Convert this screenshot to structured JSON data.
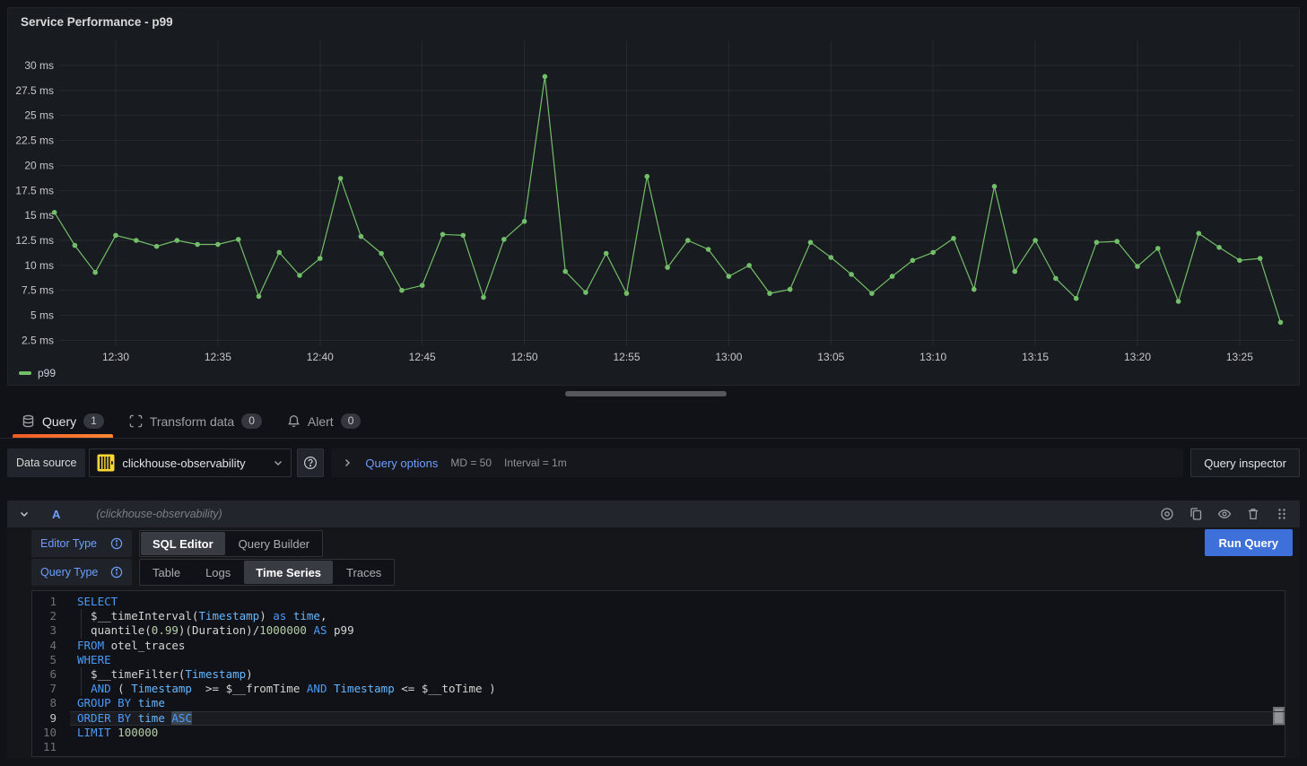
{
  "panel": {
    "title": "Service Performance - p99"
  },
  "chart_data": {
    "type": "line",
    "title": "Service Performance - p99",
    "unit": "ms",
    "grid": true,
    "legend_position": "bottom-left",
    "line_color": "#73bf69",
    "x_ticks": [
      "12:30",
      "12:35",
      "12:40",
      "12:45",
      "12:50",
      "12:55",
      "13:00",
      "13:05",
      "13:10",
      "13:15",
      "13:20",
      "13:25"
    ],
    "y_tick_labels": [
      "30 ms",
      "27.5 ms",
      "25 ms",
      "22.5 ms",
      "20 ms",
      "17.5 ms",
      "15 ms",
      "12.5 ms",
      "10 ms",
      "7.5 ms",
      "5 ms",
      "2.5 ms"
    ],
    "y_tick_values": [
      30,
      27.5,
      25,
      22.5,
      20,
      17.5,
      15,
      12.5,
      10,
      7.5,
      5,
      2.5
    ],
    "ylim": [
      2.5,
      31
    ],
    "series": [
      {
        "name": "p99",
        "points": [
          [
            "12:27",
            15.3
          ],
          [
            "12:28",
            12.0
          ],
          [
            "12:29",
            9.3
          ],
          [
            "12:30",
            13.0
          ],
          [
            "12:31",
            12.5
          ],
          [
            "12:32",
            11.9
          ],
          [
            "12:33",
            12.5
          ],
          [
            "12:34",
            12.1
          ],
          [
            "12:35",
            12.1
          ],
          [
            "12:36",
            12.6
          ],
          [
            "12:37",
            6.9
          ],
          [
            "12:38",
            11.3
          ],
          [
            "12:39",
            9.0
          ],
          [
            "12:40",
            10.7
          ],
          [
            "12:41",
            18.7
          ],
          [
            "12:42",
            12.9
          ],
          [
            "12:43",
            11.2
          ],
          [
            "12:44",
            7.5
          ],
          [
            "12:45",
            8.0
          ],
          [
            "12:46",
            13.1
          ],
          [
            "12:47",
            13.0
          ],
          [
            "12:48",
            6.8
          ],
          [
            "12:49",
            12.6
          ],
          [
            "12:50",
            14.4
          ],
          [
            "12:51",
            28.9
          ],
          [
            "12:52",
            9.4
          ],
          [
            "12:53",
            7.3
          ],
          [
            "12:54",
            11.2
          ],
          [
            "12:55",
            7.2
          ],
          [
            "12:56",
            18.9
          ],
          [
            "12:57",
            9.8
          ],
          [
            "12:58",
            12.5
          ],
          [
            "12:59",
            11.6
          ],
          [
            "13:00",
            8.9
          ],
          [
            "13:01",
            10.0
          ],
          [
            "13:02",
            7.2
          ],
          [
            "13:03",
            7.6
          ],
          [
            "13:04",
            12.3
          ],
          [
            "13:05",
            10.8
          ],
          [
            "13:06",
            9.1
          ],
          [
            "13:07",
            7.2
          ],
          [
            "13:08",
            8.9
          ],
          [
            "13:09",
            10.5
          ],
          [
            "13:10",
            11.3
          ],
          [
            "13:11",
            12.7
          ],
          [
            "13:12",
            7.6
          ],
          [
            "13:13",
            17.9
          ],
          [
            "13:14",
            9.4
          ],
          [
            "13:15",
            12.5
          ],
          [
            "13:16",
            8.7
          ],
          [
            "13:17",
            6.7
          ],
          [
            "13:18",
            12.3
          ],
          [
            "13:19",
            12.4
          ],
          [
            "13:20",
            9.9
          ],
          [
            "13:21",
            11.7
          ],
          [
            "13:22",
            6.4
          ],
          [
            "13:23",
            13.2
          ],
          [
            "13:24",
            11.8
          ],
          [
            "13:25",
            10.5
          ],
          [
            "13:26",
            10.7
          ],
          [
            "13:27",
            4.3
          ]
        ]
      }
    ]
  },
  "tabs": [
    {
      "label": "Query",
      "count": "1"
    },
    {
      "label": "Transform data",
      "count": "0"
    },
    {
      "label": "Alert",
      "count": "0"
    }
  ],
  "toolbar": {
    "datasource_label": "Data source",
    "datasource_value": "clickhouse-observability",
    "query_options_label": "Query options",
    "md": "MD = 50",
    "interval": "Interval = 1m",
    "inspector_label": "Query inspector"
  },
  "query_row": {
    "ref_id": "A",
    "datasource_hint": "(clickhouse-observability)",
    "editor_type_label": "Editor Type",
    "query_type_label": "Query Type",
    "editor_types": [
      "SQL Editor",
      "Query Builder"
    ],
    "active_editor_type": "SQL Editor",
    "query_types": [
      "Table",
      "Logs",
      "Time Series",
      "Traces"
    ],
    "active_query_type": "Time Series",
    "run_label": "Run Query"
  },
  "sql": {
    "lines": [
      {
        "tokens": [
          {
            "c": "k",
            "t": "SELECT"
          }
        ]
      },
      {
        "guide": true,
        "tokens": [
          {
            "c": "p",
            "t": "  $__timeInterval("
          },
          {
            "c": "f",
            "t": "Timestamp"
          },
          {
            "c": "p",
            "t": ") "
          },
          {
            "c": "k",
            "t": "as"
          },
          {
            "c": "p",
            "t": " "
          },
          {
            "c": "f",
            "t": "time"
          },
          {
            "c": "p",
            "t": ","
          }
        ]
      },
      {
        "guide": true,
        "tokens": [
          {
            "c": "p",
            "t": "  quantile("
          },
          {
            "c": "n",
            "t": "0.99"
          },
          {
            "c": "p",
            "t": ")(Duration)/"
          },
          {
            "c": "n",
            "t": "1000000"
          },
          {
            "c": "p",
            "t": " "
          },
          {
            "c": "k",
            "t": "AS"
          },
          {
            "c": "p",
            "t": " p99"
          }
        ]
      },
      {
        "tokens": [
          {
            "c": "k",
            "t": "FROM"
          },
          {
            "c": "p",
            "t": " otel_traces"
          }
        ]
      },
      {
        "tokens": [
          {
            "c": "k",
            "t": "WHERE"
          }
        ]
      },
      {
        "guide": true,
        "tokens": [
          {
            "c": "p",
            "t": "  $__timeFilter("
          },
          {
            "c": "f",
            "t": "Timestamp"
          },
          {
            "c": "p",
            "t": ")"
          }
        ]
      },
      {
        "guide": true,
        "tokens": [
          {
            "c": "p",
            "t": "  "
          },
          {
            "c": "k",
            "t": "AND"
          },
          {
            "c": "p",
            "t": " ( "
          },
          {
            "c": "f",
            "t": "Timestamp"
          },
          {
            "c": "p",
            "t": "  >= $__fromTime "
          },
          {
            "c": "k",
            "t": "AND"
          },
          {
            "c": "p",
            "t": " "
          },
          {
            "c": "f",
            "t": "Timestamp"
          },
          {
            "c": "p",
            "t": " <= $__toTime )"
          }
        ]
      },
      {
        "tokens": [
          {
            "c": "k",
            "t": "GROUP BY"
          },
          {
            "c": "p",
            "t": " "
          },
          {
            "c": "f",
            "t": "time"
          }
        ]
      },
      {
        "active": true,
        "tokens": [
          {
            "c": "k",
            "t": "ORDER BY"
          },
          {
            "c": "p",
            "t": " "
          },
          {
            "c": "f",
            "t": "time"
          },
          {
            "c": "p",
            "t": " "
          },
          {
            "c": "k",
            "t": "ASC",
            "sel": true
          }
        ]
      },
      {
        "tokens": [
          {
            "c": "k",
            "t": "LIMIT"
          },
          {
            "c": "p",
            "t": " "
          },
          {
            "c": "n",
            "t": "100000"
          }
        ]
      },
      {
        "tokens": []
      }
    ]
  }
}
